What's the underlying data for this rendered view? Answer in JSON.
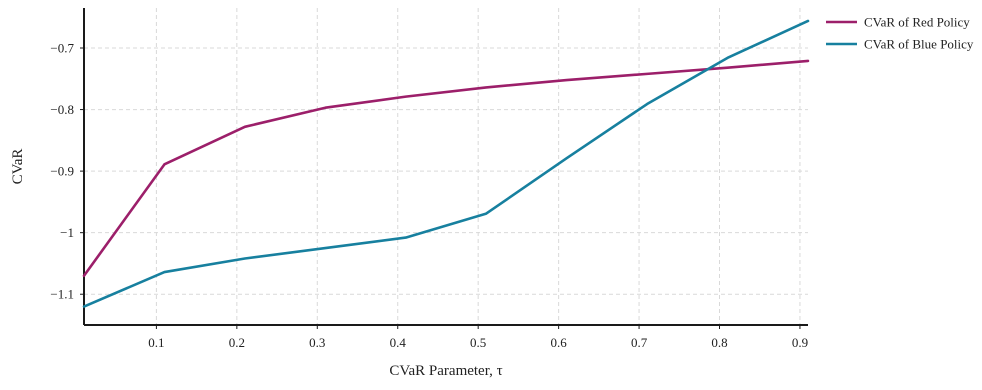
{
  "chart_data": {
    "type": "line",
    "title": "",
    "xlabel": "CVaR Parameter, τ",
    "ylabel": "CVaR",
    "xlim": [
      0.01,
      0.91
    ],
    "ylim": [
      -1.15,
      -0.635
    ],
    "x_ticks": [
      0.1,
      0.2,
      0.3,
      0.4,
      0.5,
      0.6,
      0.7,
      0.8,
      0.9
    ],
    "x_tick_labels": [
      "0.1",
      "0.2",
      "0.3",
      "0.4",
      "0.5",
      "0.6",
      "0.7",
      "0.8",
      "0.9"
    ],
    "y_ticks": [
      -1.1,
      -1,
      -0.9,
      -0.8,
      -0.7
    ],
    "y_tick_labels": [
      "−1.1",
      "−1",
      "−0.9",
      "−0.8",
      "−0.7"
    ],
    "grid": true,
    "legend_position": "outside-top-right",
    "x": [
      0.01,
      0.11,
      0.21,
      0.31,
      0.41,
      0.51,
      0.61,
      0.71,
      0.81,
      0.91
    ],
    "series": [
      {
        "name": "CVaR of Red Policy",
        "color": "#9c1f6a",
        "values": [
          -1.07,
          -0.889,
          -0.828,
          -0.797,
          -0.779,
          -0.764,
          -0.752,
          -0.742,
          -0.732,
          -0.721
        ]
      },
      {
        "name": "CVaR of Blue Policy",
        "color": "#17809f",
        "values": [
          -1.12,
          -1.064,
          -1.042,
          -1.025,
          -1.008,
          -0.969,
          -0.879,
          -0.791,
          -0.716,
          -0.656
        ]
      }
    ]
  }
}
